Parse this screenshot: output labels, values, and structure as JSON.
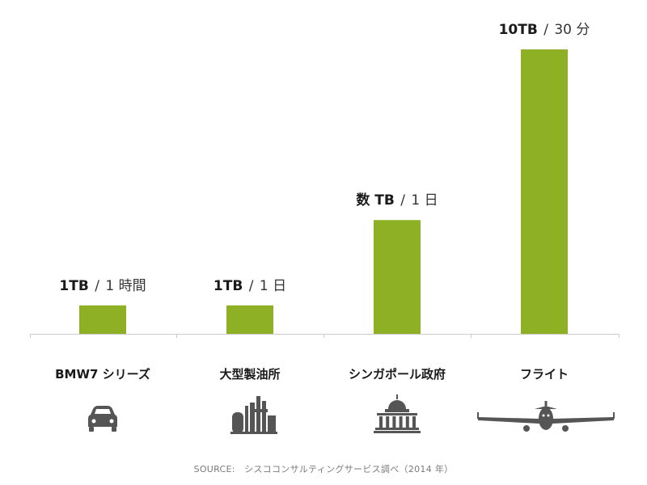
{
  "chart_data": {
    "type": "bar",
    "categories": [
      "BMW7 シリーズ",
      "大型製油所",
      "シンガポール政府",
      "フライト"
    ],
    "values": [
      1,
      1,
      4,
      10
    ],
    "value_labels": [
      {
        "amount": "1TB",
        "separator": "/",
        "rate": "1 時間"
      },
      {
        "amount": "1TB",
        "separator": "/",
        "rate": "1 日"
      },
      {
        "amount": "数 TB",
        "separator": "/",
        "rate": "1 日"
      },
      {
        "amount": "10TB",
        "separator": "/",
        "rate": "30 分"
      }
    ],
    "icons": [
      "car-icon",
      "refinery-icon",
      "government-building-icon",
      "airplane-icon"
    ],
    "ylim": [
      0,
      10.6
    ],
    "bar_color": "#8db025",
    "axis_color": "#cccccc",
    "icon_color": "#555555",
    "title": "",
    "xlabel": "",
    "ylabel": "",
    "grid": false,
    "legend": "none"
  },
  "source": "SOURCE:　シスココンサルティングサービス調べ（2014 年）"
}
